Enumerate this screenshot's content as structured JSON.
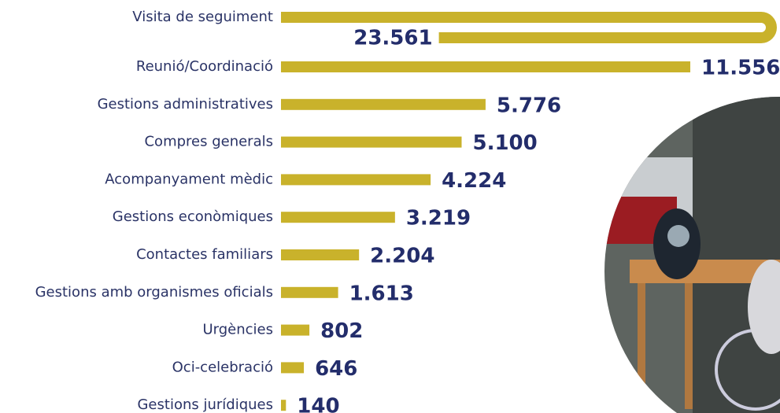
{
  "chart_data": {
    "type": "hbar",
    "categories": [
      "Visita de seguiment",
      "Reunió/Coordinació",
      "Gestions administratives",
      "Compres generals",
      "Acompanyament mèdic",
      "Gestions econòmiques",
      "Contactes familiars",
      "Gestions amb organismes oficials",
      "Urgències",
      "Oci-celebració",
      "Gestions jurídiques"
    ],
    "values": [
      23561,
      11556,
      5776,
      5100,
      4224,
      3219,
      2204,
      1613,
      802,
      646,
      140
    ],
    "value_labels": [
      "23.561",
      "11.556",
      "5.776",
      "5.100",
      "4.224",
      "3.219",
      "2.204",
      "1.613",
      "802",
      "646",
      "140"
    ],
    "color": "#c9b22b"
  }
}
